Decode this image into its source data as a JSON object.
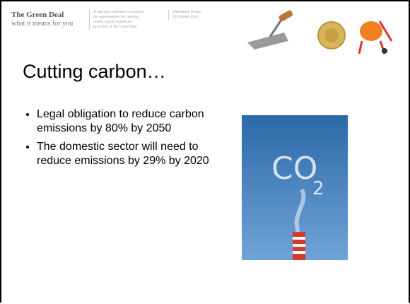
{
  "header": {
    "title": "The Green Deal",
    "subtitle": "what it means for you",
    "description": [
      "A one-day conference to explore",
      "the opportunities for creating",
      "viable, locally beneficial",
      "provision of the Green Deal"
    ],
    "event": [
      "Watershed, Bristol",
      "13 October 2011"
    ]
  },
  "slide": {
    "title": "Cutting carbon…",
    "bullets": [
      "Legal obligation to reduce carbon emissions by 80% by 2050",
      "The domestic sector will need to reduce emissions by 29% by 2020"
    ],
    "photo_text": [
      "CO",
      "2"
    ]
  }
}
